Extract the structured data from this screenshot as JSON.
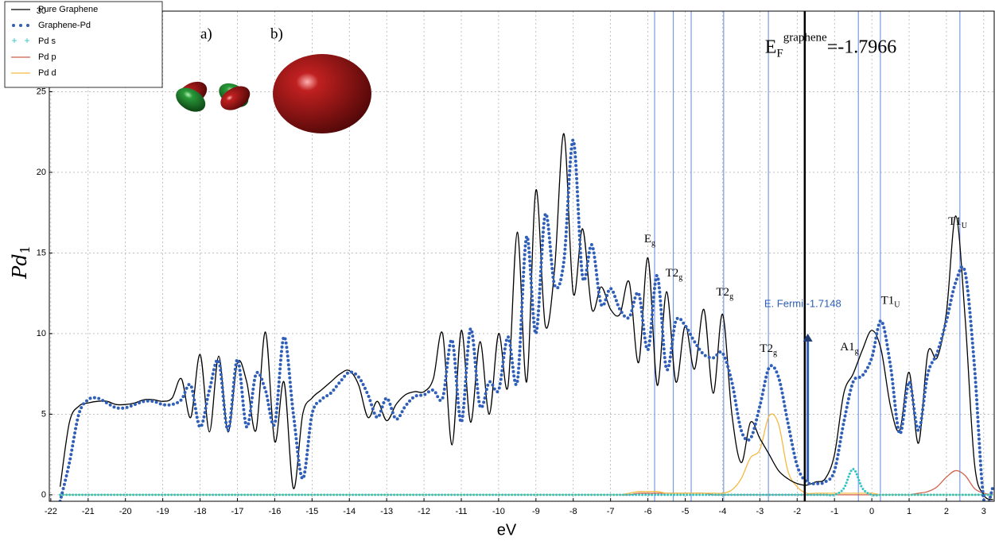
{
  "chart_data": {
    "type": "line",
    "xlabel": "eV",
    "ylabel": {
      "text": "Pd",
      "sub": "1"
    },
    "xlim": [
      -22.04,
      3.28
    ],
    "ylim": [
      -0.4,
      30
    ],
    "xticks": [
      -22,
      -21,
      -20,
      -19,
      -18,
      -17,
      -16,
      -15,
      -14,
      -13,
      -12,
      -11,
      -10,
      -9,
      -8,
      -7,
      -6,
      -5,
      -4,
      -3,
      -2,
      -1,
      0,
      1,
      2,
      3
    ],
    "yticks": [
      0,
      5,
      10,
      15,
      20,
      25,
      30
    ],
    "grid": true,
    "legend": "upper left",
    "x": [
      -22,
      -21.75,
      -21.5,
      -21.25,
      -21,
      -20.75,
      -20.5,
      -20.25,
      -20,
      -19.75,
      -19.5,
      -19.25,
      -19,
      -18.75,
      -18.5,
      -18.25,
      -18,
      -17.75,
      -17.5,
      -17.25,
      -17,
      -16.75,
      -16.5,
      -16.25,
      -16,
      -15.75,
      -15.5,
      -15.25,
      -15,
      -14.75,
      -14.5,
      -14.25,
      -14,
      -13.75,
      -13.5,
      -13.25,
      -13,
      -12.75,
      -12.5,
      -12.25,
      -12,
      -11.75,
      -11.5,
      -11.25,
      -11,
      -10.75,
      -10.5,
      -10.25,
      -10,
      -9.75,
      -9.5,
      -9.25,
      -9,
      -8.75,
      -8.5,
      -8.25,
      -8,
      -7.75,
      -7.5,
      -7.25,
      -7,
      -6.75,
      -6.5,
      -6.25,
      -6,
      -5.75,
      -5.5,
      -5.25,
      -5,
      -4.75,
      -4.5,
      -4.25,
      -4,
      -3.75,
      -3.5,
      -3.25,
      -3,
      -2.75,
      -2.5,
      -2.25,
      -2,
      -1.75,
      -1.5,
      -1.25,
      -1,
      -0.75,
      -0.5,
      -0.25,
      0,
      0.25,
      0.5,
      0.75,
      1,
      1.25,
      1.5,
      1.75,
      2,
      2.25,
      2.5,
      2.75,
      3,
      3.25
    ],
    "series": [
      {
        "name": "Pure Graphene",
        "color": "#000000",
        "style": "line",
        "values": [
          null,
          0.5,
          4.5,
          5.5,
          5.7,
          5.8,
          5.8,
          5.6,
          5.6,
          5.7,
          5.9,
          5.9,
          5.8,
          6.0,
          7.2,
          4.8,
          8.7,
          3.9,
          8.6,
          3.9,
          8.2,
          7.0,
          4.0,
          10.1,
          3.3,
          7.0,
          0.4,
          5.0,
          6.0,
          6.5,
          7.0,
          7.5,
          7.7,
          6.8,
          4.8,
          5.8,
          4.6,
          5.6,
          6.2,
          6.4,
          6.4,
          7.2,
          10.0,
          3.1,
          10.2,
          4.5,
          9.5,
          5.0,
          10.0,
          6.7,
          16.3,
          7.0,
          18.9,
          10.5,
          14.0,
          22.4,
          12.5,
          16.5,
          11.5,
          12.9,
          11.5,
          11.2,
          13.2,
          8.2,
          14.7,
          6.8,
          12.6,
          7.0,
          10.5,
          7.8,
          11.5,
          6.3,
          11.2,
          5.0,
          2.0,
          4.5,
          3.5,
          2.5,
          1.5,
          1.0,
          0.7,
          0.6,
          0.8,
          1.0,
          2.5,
          6.3,
          7.5,
          9.0,
          10.2,
          9.0,
          5.5,
          4.0,
          7.6,
          3.2,
          8.8,
          8.5,
          11.3,
          17.3,
          11.0,
          2.0,
          0.0,
          -0.3
        ]
      },
      {
        "name": "Graphene-Pd",
        "color": "#2f5fb8",
        "style": "dots",
        "values": [
          null,
          -0.4,
          2.0,
          5.0,
          5.9,
          6.0,
          5.7,
          5.4,
          5.4,
          5.6,
          5.8,
          5.8,
          5.6,
          5.6,
          5.9,
          6.8,
          4.2,
          6.5,
          8.3,
          4.0,
          8.4,
          4.2,
          7.5,
          6.5,
          4.4,
          9.8,
          5.0,
          1.0,
          5.0,
          5.9,
          6.3,
          7.0,
          7.6,
          7.3,
          6.2,
          4.8,
          6.0,
          4.7,
          5.5,
          6.1,
          6.2,
          6.5,
          6.0,
          9.6,
          4.5,
          10.3,
          5.5,
          7.0,
          6.5,
          9.8,
          7.0,
          16.0,
          10.0,
          17.4,
          13.0,
          14.5,
          22.0,
          13.5,
          15.5,
          11.8,
          12.8,
          11.5,
          11.0,
          12.5,
          9.0,
          13.6,
          7.8,
          10.8,
          10.5,
          9.5,
          8.7,
          8.5,
          8.8,
          7.0,
          4.0,
          3.5,
          5.5,
          7.9,
          7.3,
          4.5,
          1.8,
          0.8,
          0.7,
          0.8,
          1.5,
          4.5,
          7.0,
          7.4,
          8.5,
          10.8,
          8.0,
          3.8,
          7.0,
          4.0,
          7.5,
          8.8,
          10.8,
          13.2,
          13.8,
          8.0,
          -0.3,
          0.5
        ]
      },
      {
        "name": "Pd s",
        "color": "#2ec4c4",
        "style": "plus",
        "values": [
          null,
          0,
          0,
          0,
          0,
          0,
          0,
          0,
          0,
          0,
          0,
          0,
          0,
          0,
          0,
          0,
          0,
          0,
          0,
          0,
          0,
          0,
          0,
          0,
          0,
          0,
          0,
          0,
          0,
          0,
          0,
          0,
          0,
          0,
          0,
          0,
          0,
          0,
          0,
          0,
          0,
          0,
          0,
          0,
          0,
          0,
          0,
          0,
          0,
          0,
          0,
          0,
          0,
          0,
          0,
          0,
          0,
          0,
          0,
          0,
          0,
          0,
          0,
          0,
          0,
          0,
          0,
          0,
          0,
          0,
          0,
          0,
          0,
          0,
          0,
          0,
          0,
          0,
          0,
          0,
          0,
          0,
          0,
          0,
          0,
          0.4,
          1.6,
          0.4,
          0,
          0,
          0,
          0,
          0,
          0,
          0,
          0,
          0,
          0,
          0,
          0,
          0,
          0
        ]
      },
      {
        "name": "Pd p",
        "color": "#d0604a",
        "style": "line",
        "values": [
          null,
          0,
          0,
          0,
          0,
          0,
          0,
          0,
          0,
          0,
          0,
          0,
          0,
          0,
          0,
          0,
          0,
          0,
          0,
          0,
          0,
          0,
          0,
          0,
          0,
          0,
          0,
          0,
          0,
          0,
          0,
          0,
          0,
          0,
          0,
          0,
          0,
          0,
          0,
          0,
          0,
          0,
          0,
          0,
          0,
          0,
          0,
          0,
          0,
          0,
          0,
          0,
          0,
          0,
          0,
          0,
          0,
          0,
          0,
          0,
          0,
          0,
          0,
          0.1,
          0.1,
          0.1,
          0.1,
          0.1,
          0.1,
          0.1,
          0.1,
          0,
          0,
          0,
          0,
          0,
          0,
          0,
          0,
          0,
          0,
          0,
          0,
          0,
          0,
          0,
          0,
          0,
          0,
          0,
          0,
          0,
          0,
          0.1,
          0.2,
          0.5,
          1.1,
          1.5,
          1.2,
          0.4,
          0.1,
          0
        ]
      },
      {
        "name": "Pd d",
        "color": "#f5b942",
        "style": "line",
        "values": [
          null,
          0,
          0,
          0,
          0,
          0,
          0,
          0,
          0,
          0,
          0,
          0,
          0,
          0,
          0,
          0,
          0,
          0,
          0,
          0,
          0,
          0,
          0,
          0,
          0,
          0,
          0,
          0,
          0,
          0,
          0,
          0,
          0,
          0,
          0,
          0,
          0,
          0,
          0,
          0,
          0,
          0,
          0,
          0,
          0,
          0,
          0,
          0,
          0,
          0,
          0,
          0,
          0,
          0,
          0,
          0,
          0,
          0,
          0,
          0,
          0,
          0,
          0.1,
          0.2,
          0.2,
          0.2,
          0.1,
          0.1,
          0.1,
          0.1,
          0.1,
          0.1,
          0.1,
          0.3,
          1.0,
          2.3,
          2.8,
          4.9,
          4.4,
          1.5,
          0.5,
          0.1,
          0.1,
          0.1,
          0.1,
          0.1,
          0.1,
          0.1,
          0.1,
          0,
          0,
          0,
          0,
          0,
          0,
          0,
          0,
          0,
          0,
          0,
          0,
          0
        ]
      }
    ],
    "reference_lines": [
      -5.82,
      -5.32,
      -4.84,
      -3.97,
      -2.77,
      -0.36,
      0.23,
      2.36
    ],
    "reference_color": "#7a9be0",
    "fermi_line": -1.7966,
    "fermi_arrow": {
      "x": -1.7148,
      "y0": 0.8,
      "y1": 10,
      "color": "#2f5fb8"
    },
    "annotations": [
      {
        "text": "E",
        "sub": "g",
        "x": -5.95,
        "y": 15.8
      },
      {
        "text": "T2",
        "sub": "g",
        "x": -5.3,
        "y": 13.7
      },
      {
        "text": "T2",
        "sub": "g",
        "x": -3.94,
        "y": 12.5
      },
      {
        "text": "T2",
        "sub": "g",
        "x": -2.77,
        "y": 9.0
      },
      {
        "text": "A1",
        "sub": "g",
        "x": -0.6,
        "y": 9.1
      },
      {
        "text": "T1",
        "sub": "U",
        "x": 0.5,
        "y": 12.0
      },
      {
        "text": "T1",
        "sub": "U",
        "x": 2.3,
        "y": 16.9
      },
      {
        "text": "E",
        "sub": "F",
        "sup": "graphene",
        "tail": "=-1.7966",
        "x": -1.1,
        "y": 27.7
      },
      {
        "text": "E. Fermi -1.7148",
        "x": -1.85,
        "y": 11.8,
        "color": "#2f5fb8"
      }
    ],
    "inset_labels": [
      "a)",
      "b)"
    ]
  }
}
